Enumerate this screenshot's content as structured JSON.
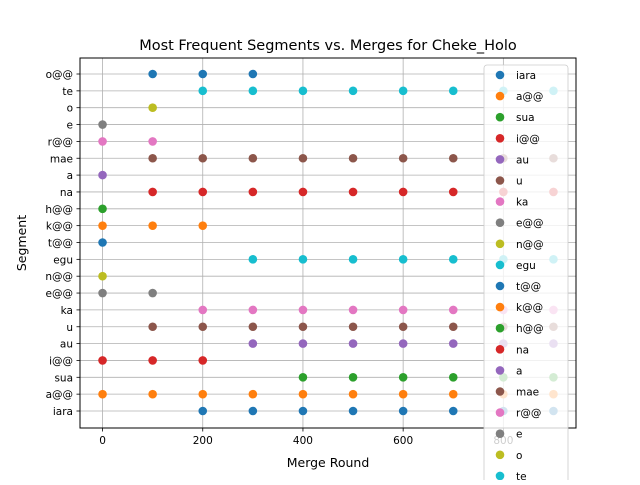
{
  "chart_data": {
    "type": "scatter",
    "title": "Most Frequent Segments vs. Merges for Cheke_Holo",
    "xlabel": "Merge Round",
    "ylabel": "Segment",
    "x_ticks": [
      0,
      200,
      400,
      600,
      800
    ],
    "xlim": [
      -45,
      945
    ],
    "grid": true,
    "legend_position": "right",
    "y_categories": [
      "iara",
      "a@@",
      "sua",
      "i@@",
      "au",
      "u",
      "ka",
      "e@@",
      "n@@",
      "egu",
      "t@@",
      "k@@",
      "h@@",
      "na",
      "a",
      "mae",
      "r@@",
      "e",
      "o",
      "te",
      "o@@"
    ],
    "series": [
      {
        "name": "iara",
        "color": "#1f77b4",
        "points": [
          [
            200,
            "iara"
          ],
          [
            300,
            "iara"
          ],
          [
            400,
            "iara"
          ],
          [
            500,
            "iara"
          ],
          [
            600,
            "iara"
          ],
          [
            700,
            "iara"
          ],
          [
            800,
            "iara"
          ],
          [
            900,
            "iara"
          ]
        ]
      },
      {
        "name": "a@@",
        "color": "#ff7f0e",
        "points": [
          [
            0,
            "a@@"
          ],
          [
            100,
            "a@@"
          ],
          [
            200,
            "a@@"
          ],
          [
            300,
            "a@@"
          ],
          [
            400,
            "a@@"
          ],
          [
            500,
            "a@@"
          ],
          [
            600,
            "a@@"
          ],
          [
            700,
            "a@@"
          ],
          [
            800,
            "a@@"
          ],
          [
            900,
            "a@@"
          ]
        ]
      },
      {
        "name": "sua",
        "color": "#2ca02c",
        "points": [
          [
            400,
            "sua"
          ],
          [
            500,
            "sua"
          ],
          [
            600,
            "sua"
          ],
          [
            700,
            "sua"
          ],
          [
            800,
            "sua"
          ],
          [
            900,
            "sua"
          ]
        ]
      },
      {
        "name": "i@@",
        "color": "#d62728",
        "points": [
          [
            0,
            "i@@"
          ],
          [
            100,
            "i@@"
          ],
          [
            200,
            "i@@"
          ]
        ]
      },
      {
        "name": "au",
        "color": "#9467bd",
        "points": [
          [
            300,
            "au"
          ],
          [
            400,
            "au"
          ],
          [
            500,
            "au"
          ],
          [
            600,
            "au"
          ],
          [
            700,
            "au"
          ],
          [
            800,
            "au"
          ],
          [
            900,
            "au"
          ]
        ]
      },
      {
        "name": "u",
        "color": "#8c564b",
        "points": [
          [
            100,
            "u"
          ],
          [
            200,
            "u"
          ],
          [
            300,
            "u"
          ],
          [
            400,
            "u"
          ],
          [
            500,
            "u"
          ],
          [
            600,
            "u"
          ],
          [
            700,
            "u"
          ],
          [
            800,
            "u"
          ],
          [
            900,
            "u"
          ]
        ]
      },
      {
        "name": "ka",
        "color": "#e377c2",
        "points": [
          [
            200,
            "ka"
          ],
          [
            300,
            "ka"
          ],
          [
            400,
            "ka"
          ],
          [
            500,
            "ka"
          ],
          [
            600,
            "ka"
          ],
          [
            700,
            "ka"
          ],
          [
            800,
            "ka"
          ],
          [
            900,
            "ka"
          ]
        ]
      },
      {
        "name": "e@@",
        "color": "#7f7f7f",
        "points": [
          [
            0,
            "e@@"
          ],
          [
            100,
            "e@@"
          ]
        ]
      },
      {
        "name": "n@@",
        "color": "#bcbd22",
        "points": [
          [
            0,
            "n@@"
          ]
        ]
      },
      {
        "name": "egu",
        "color": "#17becf",
        "points": [
          [
            300,
            "egu"
          ],
          [
            400,
            "egu"
          ],
          [
            500,
            "egu"
          ],
          [
            600,
            "egu"
          ],
          [
            700,
            "egu"
          ],
          [
            800,
            "egu"
          ],
          [
            900,
            "egu"
          ]
        ]
      },
      {
        "name": "t@@",
        "color": "#1f77b4",
        "points": [
          [
            0,
            "t@@"
          ]
        ]
      },
      {
        "name": "k@@",
        "color": "#ff7f0e",
        "points": [
          [
            0,
            "k@@"
          ],
          [
            100,
            "k@@"
          ],
          [
            200,
            "k@@"
          ]
        ]
      },
      {
        "name": "h@@",
        "color": "#2ca02c",
        "points": [
          [
            0,
            "h@@"
          ]
        ]
      },
      {
        "name": "na",
        "color": "#d62728",
        "points": [
          [
            100,
            "na"
          ],
          [
            200,
            "na"
          ],
          [
            300,
            "na"
          ],
          [
            400,
            "na"
          ],
          [
            500,
            "na"
          ],
          [
            600,
            "na"
          ],
          [
            700,
            "na"
          ],
          [
            800,
            "na"
          ],
          [
            900,
            "na"
          ]
        ]
      },
      {
        "name": "a",
        "color": "#9467bd",
        "points": [
          [
            0,
            "a"
          ]
        ]
      },
      {
        "name": "mae",
        "color": "#8c564b",
        "points": [
          [
            100,
            "mae"
          ],
          [
            200,
            "mae"
          ],
          [
            300,
            "mae"
          ],
          [
            400,
            "mae"
          ],
          [
            500,
            "mae"
          ],
          [
            600,
            "mae"
          ],
          [
            700,
            "mae"
          ],
          [
            800,
            "mae"
          ],
          [
            900,
            "mae"
          ]
        ]
      },
      {
        "name": "r@@",
        "color": "#e377c2",
        "points": [
          [
            0,
            "r@@"
          ],
          [
            100,
            "r@@"
          ]
        ]
      },
      {
        "name": "e",
        "color": "#7f7f7f",
        "points": [
          [
            0,
            "e"
          ]
        ]
      },
      {
        "name": "o",
        "color": "#bcbd22",
        "points": [
          [
            100,
            "o"
          ]
        ]
      },
      {
        "name": "te",
        "color": "#17becf",
        "points": [
          [
            200,
            "te"
          ],
          [
            300,
            "te"
          ],
          [
            400,
            "te"
          ],
          [
            500,
            "te"
          ],
          [
            600,
            "te"
          ],
          [
            700,
            "te"
          ],
          [
            800,
            "te"
          ],
          [
            900,
            "te"
          ]
        ]
      },
      {
        "name": "o@@",
        "color": "#1f77b4",
        "points": [
          [
            100,
            "o@@"
          ],
          [
            200,
            "o@@"
          ],
          [
            300,
            "o@@"
          ]
        ]
      }
    ]
  }
}
